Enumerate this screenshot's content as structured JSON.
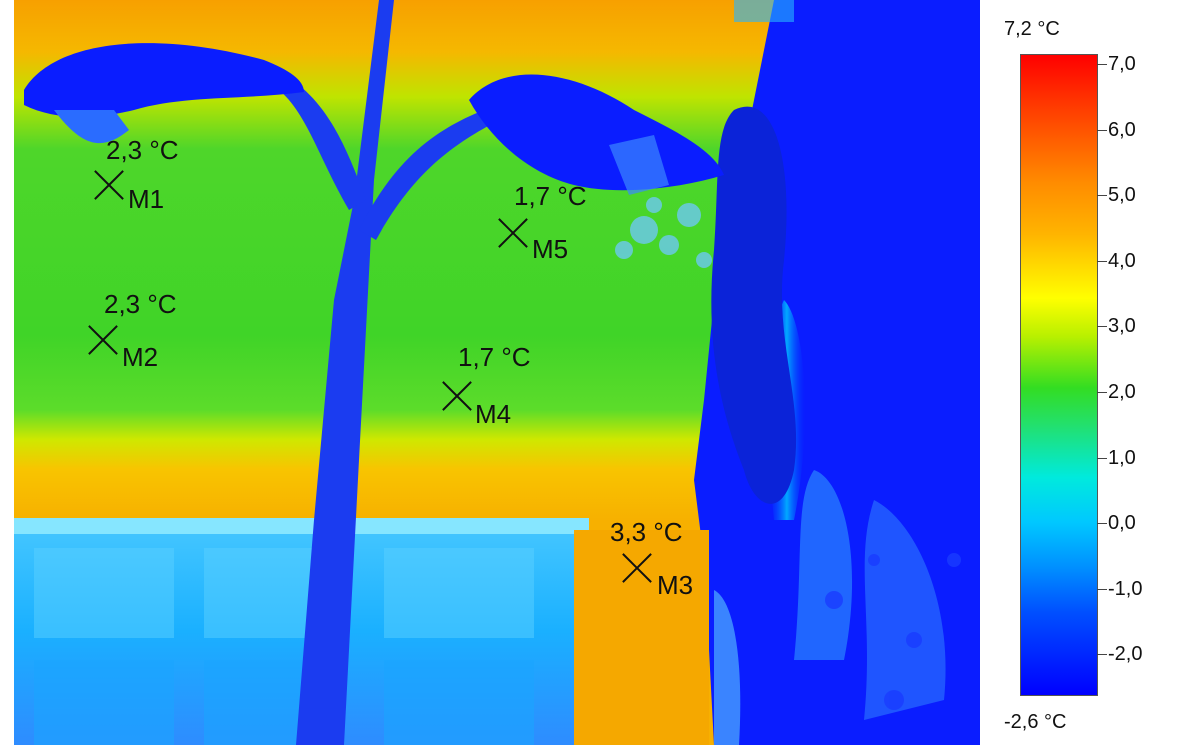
{
  "image": {
    "subject": "thermal image of building facade with street lamp",
    "palette": "rainbow"
  },
  "measurements": [
    {
      "label": "M1",
      "temp": "2,3 °C"
    },
    {
      "label": "M2",
      "temp": "2,3 °C"
    },
    {
      "label": "M3",
      "temp": "3,3 °C"
    },
    {
      "label": "M4",
      "temp": "1,7 °C"
    },
    {
      "label": "M5",
      "temp": "1,7 °C"
    }
  ],
  "scale": {
    "max_label": "7,2 °C",
    "min_label": "-2,6 °C",
    "ticks": [
      "7,0",
      "6,0",
      "5,0",
      "4,0",
      "3,0",
      "2,0",
      "1,0",
      "0,0",
      "-1,0",
      "-2,0"
    ],
    "colors": {
      "hot": "#ff0000",
      "warm": "#ff8c00",
      "mid": "#ffff00",
      "neutral": "#33dd22",
      "cool": "#00eadd",
      "cold": "#0000ff"
    }
  }
}
